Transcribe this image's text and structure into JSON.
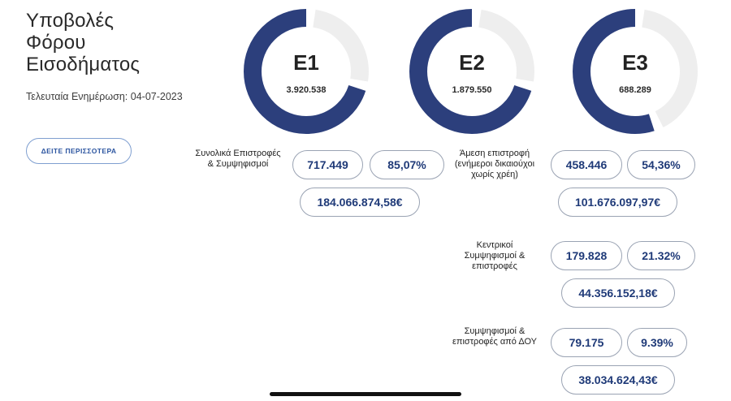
{
  "header": {
    "title_line1": "Υποβολές",
    "title_line2": "Φόρου",
    "title_line3": "Εισοδήματος",
    "last_update": "Τελευταία Ενημέρωση: 04-07-2023",
    "more_button": "ΔΕΙΤΕ ΠΕΡΙΣΣΟΤΕΡΑ"
  },
  "colors": {
    "accent": "#2c3f7c",
    "track": "#eeeeee",
    "pill_border": "#9aa3b3",
    "pill_text": "#1f3a78"
  },
  "donuts": [
    {
      "label": "E1",
      "value": "3.920.538",
      "fill_fraction": 0.7
    },
    {
      "label": "E2",
      "value": "1.879.550",
      "fill_fraction": 0.7
    },
    {
      "label": "E3",
      "value": "688.289",
      "fill_fraction": 0.55
    }
  ],
  "e1_summary": {
    "label": "Συνολικά Επιστροφές & Συμψηφισμοί",
    "count": "717.449",
    "percent": "85,07%",
    "amount": "184.066.874,58€"
  },
  "breakdown": [
    {
      "label": "Άμεση επιστροφή (ενήμεροι δικαιούχοι χωρίς χρέη)",
      "count": "458.446",
      "percent": "54,36%",
      "amount": "101.676.097,97€"
    },
    {
      "label": "Κεντρικοί Συμψηφισμοί & επιστροφές",
      "count": "179.828",
      "percent": "21.32%",
      "amount": "44.356.152,18€"
    },
    {
      "label": "Συμψηφισμοί & επιστροφές από ΔΟΥ",
      "count": "79.175",
      "percent": "9.39%",
      "amount": "38.034.624,43€"
    }
  ]
}
